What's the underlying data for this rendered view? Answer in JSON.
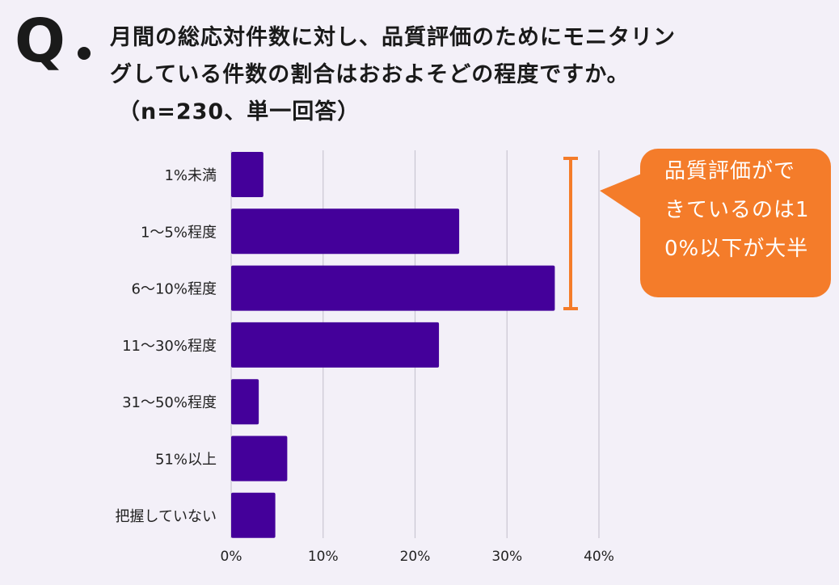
{
  "question": {
    "mark": "Q",
    "line1": "月間の総応対件数に対し、品質評価のためにモニタリン",
    "line2": "グしている件数の割合はおおよそどの程度ですか。",
    "line3": "（n=230、単一回答）"
  },
  "callout": {
    "text": "品質評価ができているのは10%以下が大半",
    "color": "#f47c2a"
  },
  "chart_data": {
    "type": "bar",
    "orientation": "horizontal",
    "categories": [
      "1%未満",
      "1〜5%程度",
      "6〜10%程度",
      "11〜30%程度",
      "31〜50%程度",
      "51%以上",
      "把握していない"
    ],
    "values": [
      3.5,
      24.8,
      35.2,
      22.6,
      3.0,
      6.1,
      4.8
    ],
    "xlim": [
      0,
      40
    ],
    "xticks": [
      "0%",
      "10%",
      "20%",
      "30%",
      "40%"
    ],
    "grid": true,
    "bar_color": "#44009a",
    "bracket_color": "#f47c2a"
  }
}
